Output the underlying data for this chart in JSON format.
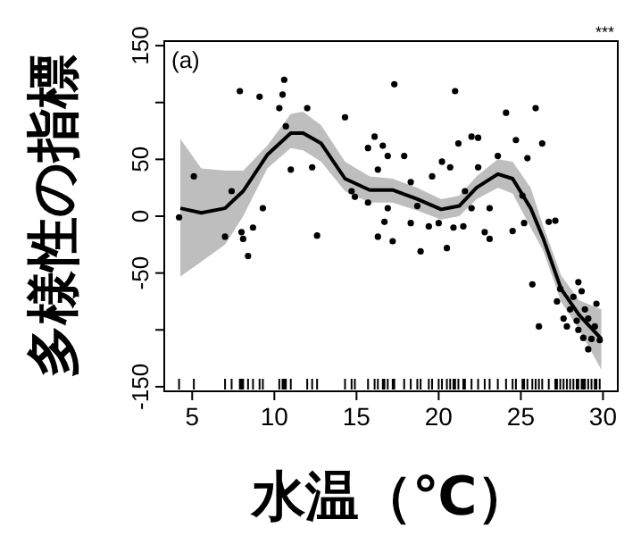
{
  "chart_data": {
    "type": "scatter",
    "xlabel": "水温（℃）",
    "ylabel": "多様性の指標",
    "annotations": [
      "(a)",
      "***"
    ],
    "xlim": [
      3.3,
      30.9
    ],
    "ylim": [
      -154,
      154
    ],
    "xticks": [
      5,
      10,
      15,
      20,
      25,
      30
    ],
    "yticks": [
      -150,
      {
        "value": -100,
        "label": null
      },
      -50,
      0,
      50,
      {
        "value": 100,
        "label": null
      },
      150
    ],
    "grid": false,
    "series": [
      {
        "type": "scatter",
        "color": "#000000",
        "marker": "circle",
        "x": [
          5.1,
          7.9,
          9.1,
          7.4,
          9.3,
          10.6,
          10.5,
          10.3,
          10.7,
          12.0,
          11.0,
          12.3,
          14.3,
          17.3,
          16.1,
          15.7,
          16.6,
          16.9,
          17.9,
          16.3,
          14.7,
          14.9,
          15.7,
          16.9,
          18.3,
          18.7,
          19.6,
          20.2,
          20.7,
          21.0,
          21.2,
          22.0,
          22.4,
          21.6,
          22.0,
          22.4,
          23.1,
          24.1,
          23.6,
          24.7,
          25.4,
          25.9,
          26.3,
          27.1,
          26.7,
          25.1,
          4.2,
          7.0,
          8.0,
          8.1,
          8.4,
          8.7,
          12.6,
          16.3,
          17.2,
          16.7,
          18.3,
          18.9,
          19.4,
          20.0,
          20.5,
          20.9,
          21.5,
          22.8,
          23.1,
          24.5,
          25.2,
          25.7,
          26.1,
          27.2,
          27.4,
          27.6,
          27.8,
          28.2,
          28.5,
          28.7,
          28.9,
          29.1,
          28.5,
          28.8,
          29.1,
          29.5,
          29.6,
          29.3,
          29.8,
          28.0,
          28.4
        ],
        "values": [
          35,
          110,
          105,
          22,
          7,
          120,
          107,
          95,
          79,
          95,
          41,
          43,
          87,
          116,
          70,
          60,
          62,
          53,
          53,
          41,
          22,
          17,
          12,
          7,
          30,
          9,
          35,
          48,
          43,
          110,
          64,
          70,
          69,
          22,
          7,
          43,
          7,
          91,
          53,
          67,
          51,
          95,
          64,
          -4,
          -5,
          18,
          -1,
          -18,
          -14,
          -20,
          -35,
          -10,
          -17,
          -18,
          -22,
          -5,
          -6,
          -31,
          -9,
          -6,
          -28,
          -10,
          -9,
          -14,
          -20,
          -13,
          -6,
          -60,
          -97,
          -75,
          -64,
          -90,
          -97,
          -71,
          -58,
          -66,
          -82,
          -90,
          -100,
          -107,
          -117,
          -97,
          -77,
          -108,
          -109,
          -82,
          -92
        ]
      },
      {
        "type": "line",
        "color": "#000000",
        "x": [
          4.28,
          5.55,
          7.0,
          8.1,
          9.57,
          11.0,
          11.75,
          12.85,
          14.3,
          15.8,
          17.2,
          18.7,
          20.15,
          21.25,
          22.3,
          23.6,
          24.5,
          25.6,
          26.35,
          27.45,
          28.55,
          29.9
        ],
        "values": [
          7,
          3,
          7,
          22,
          54,
          73,
          73,
          64,
          33,
          23,
          23,
          15,
          6,
          9,
          25,
          37,
          33,
          7,
          -19,
          -64,
          -87,
          -108
        ],
        "lower": [
          -53,
          -40,
          -25,
          0,
          42,
          60,
          58,
          48,
          22,
          12,
          12,
          5,
          -3,
          0,
          15,
          25,
          20,
          -10,
          -30,
          -75,
          -100,
          -135
        ],
        "upper": [
          68,
          42,
          40,
          40,
          62,
          90,
          92,
          80,
          48,
          35,
          33,
          25,
          15,
          18,
          35,
          50,
          48,
          25,
          -8,
          -52,
          -74,
          -82
        ]
      }
    ]
  }
}
